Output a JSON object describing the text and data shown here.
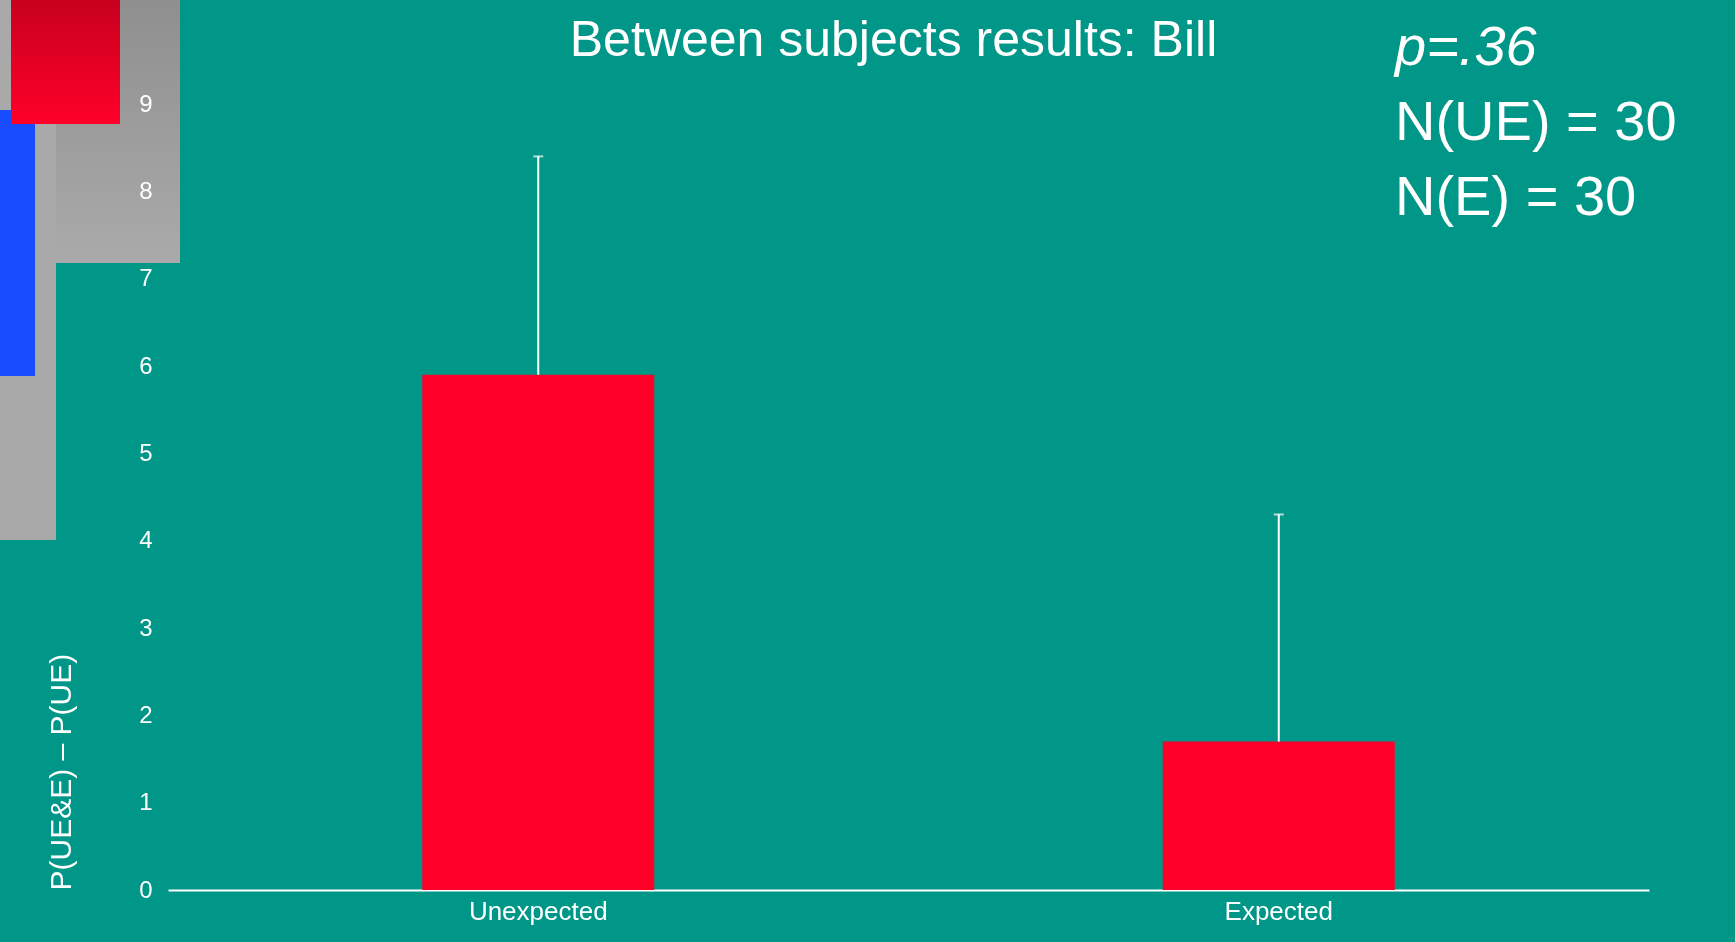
{
  "chart_data": {
    "type": "bar",
    "title": "Between subjects results: Bill",
    "ylabel": "P(UE&E) – P(UE)",
    "categories": [
      "Unexpected",
      "Expected"
    ],
    "values": [
      5.9,
      1.7
    ],
    "color": "#ff0029",
    "errors": [
      [
        5.9,
        8.4
      ],
      [
        1.7,
        4.3
      ]
    ],
    "ylim": [
      0,
      9
    ],
    "yticks": [
      0,
      1,
      2,
      3,
      4,
      5,
      6,
      7,
      8,
      9
    ],
    "grid": false,
    "annotations": [
      "p=.36",
      "N(UE) = 30",
      "N(E) = 30"
    ]
  }
}
